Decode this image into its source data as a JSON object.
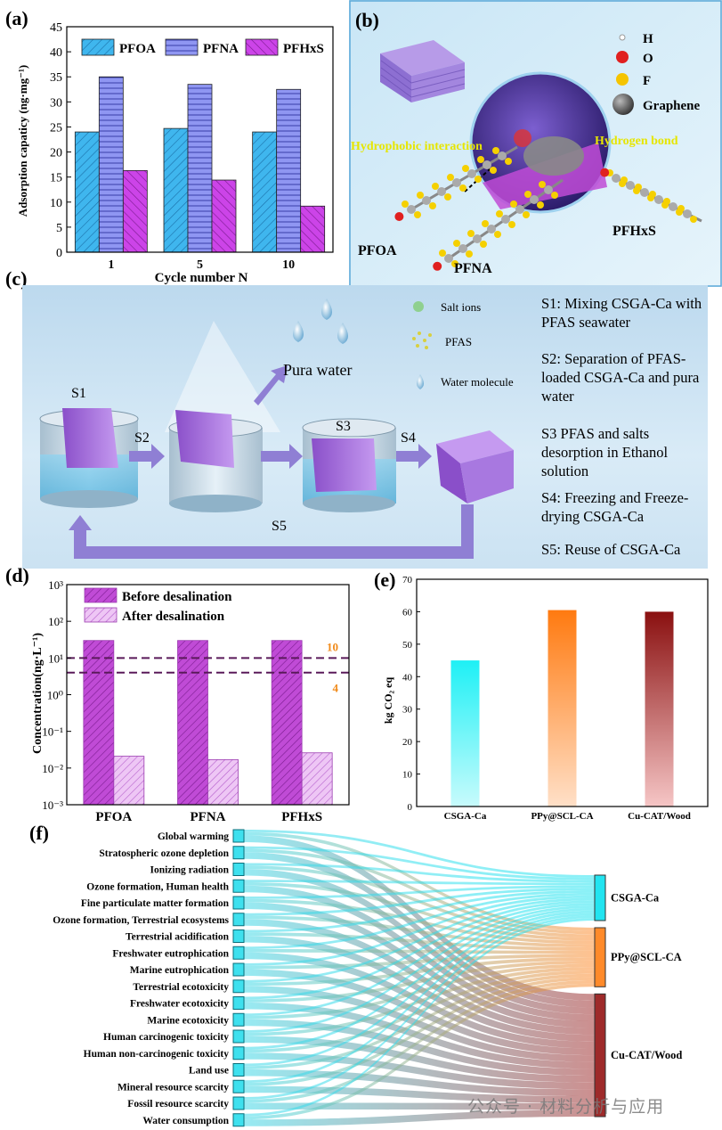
{
  "panel_labels": {
    "a": "(a)",
    "b": "(b)",
    "c": "(c)",
    "d": "(d)",
    "e": "(e)",
    "f": "(f)"
  },
  "panel_b": {
    "legend": [
      {
        "symbol": "H",
        "color": "#ffffff"
      },
      {
        "symbol": "O",
        "color": "#e02020"
      },
      {
        "symbol": "F",
        "color": "#f5c400"
      },
      {
        "symbol": "Graphene",
        "color": "#555555"
      }
    ],
    "hydrophobic": "Hydrophobic interaction",
    "hydrogen_bond": "Hydrogen bond",
    "molecules": [
      "PFOA",
      "PFNA",
      "PFHxS"
    ]
  },
  "panel_c": {
    "legend": {
      "salt": "Salt ions",
      "pfas": "PFAS",
      "water": "Water molecule"
    },
    "pure_water": "Pura water",
    "stage_labels": [
      "S1",
      "S2",
      "S3",
      "S4",
      "S5"
    ],
    "steps": [
      "S1: Mixing CSGA-Ca with PFAS seawater",
      "S2: Separation of PFAS-loaded CSGA-Ca and pura water",
      "S3 PFAS and salts desorption in Ethanol solution",
      "S4: Freezing and Freeze-drying CSGA-Ca",
      "S5: Reuse of CSGA-Ca"
    ]
  },
  "chart_data": [
    {
      "id": "a",
      "type": "bar",
      "categories": [
        "1",
        "5",
        "10"
      ],
      "series": [
        {
          "name": "PFOA",
          "values": [
            24.0,
            24.7,
            24.0
          ],
          "color": "#3fb6ee"
        },
        {
          "name": "PFNA",
          "values": [
            35.0,
            33.5,
            32.5
          ],
          "color": "#8f96f2"
        },
        {
          "name": "PFHxS",
          "values": [
            16.3,
            14.4,
            9.2
          ],
          "color": "#cc44e8"
        }
      ],
      "xlabel": "Cycle number N",
      "ylabel": "Adsorption capaticy (ng·mg⁻¹)",
      "ylim": [
        0,
        45
      ],
      "yticks": [
        "0",
        "5",
        "10",
        "15",
        "20",
        "25",
        "30",
        "35",
        "40",
        "45"
      ]
    },
    {
      "id": "d",
      "type": "bar",
      "scale": "log",
      "categories": [
        "PFOA",
        "PFNA",
        "PFHxS"
      ],
      "series": [
        {
          "name": "Before desalination",
          "values": [
            30,
            30,
            30
          ],
          "color": "#c04bd6"
        },
        {
          "name": "After desalination",
          "values": [
            0.021,
            0.017,
            0.026
          ],
          "color": "#e0a6ec"
        }
      ],
      "reference_lines": [
        {
          "value": 10,
          "label": "10"
        },
        {
          "value": 4,
          "label": "4"
        }
      ],
      "ylabel": "Concentration(ng·L⁻¹)",
      "ylim": [
        0.001,
        1000
      ],
      "yticks": [
        "10⁻³",
        "10⁻²",
        "10⁻¹",
        "10⁰",
        "10¹",
        "10²",
        "10³"
      ]
    },
    {
      "id": "e",
      "type": "bar",
      "categories": [
        "CSGA-Ca",
        "PPy@SCL-CA",
        "Cu-CAT/Wood"
      ],
      "values": [
        45,
        60.5,
        60
      ],
      "colors": [
        [
          "#1ef0f5",
          "#c8fbfc"
        ],
        [
          "#ff7a10",
          "#ffe0c8"
        ],
        [
          "#8a1010",
          "#f6c6c6"
        ]
      ],
      "ylabel": "kg CO₂ eq",
      "ylim": [
        0,
        70
      ],
      "yticks": [
        "0",
        "10",
        "20",
        "30",
        "40",
        "50",
        "60",
        "70"
      ]
    },
    {
      "id": "f",
      "type": "sankey",
      "sources": [
        "Global warming",
        "Stratospheric ozone depletion",
        "Ionizing radiation",
        "Ozone formation, Human health",
        "Fine particulate matter formation",
        "Ozone formation, Terrestrial ecosystems",
        "Terrestrial acidification",
        "Freshwater eutrophication",
        "Marine eutrophication",
        "Terrestrial ecotoxicity",
        "Freshwater ecotoxicity",
        "Marine ecotoxicity",
        "Human carcinogenic toxicity",
        "Human non-carcinogenic toxicity",
        "Land use",
        "Mineral resource scarcity",
        "Fossil resource scarcity",
        "Water consumption"
      ],
      "targets": [
        {
          "name": "CSGA-Ca",
          "share": 0.2,
          "color": "#22e4f0"
        },
        {
          "name": "PPy@SCL-CA",
          "share": 0.26,
          "color": "#ff8a2a"
        },
        {
          "name": "Cu-CAT/Wood",
          "share": 0.54,
          "color": "#9e2a2a"
        }
      ]
    }
  ],
  "watermark": "公众号 · 材料分析与应用"
}
